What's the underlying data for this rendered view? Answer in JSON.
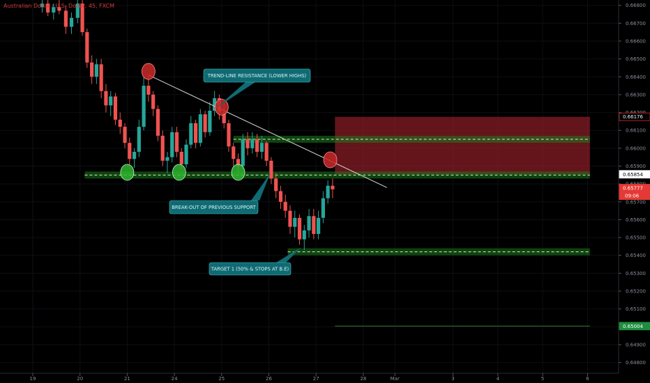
{
  "chart_data": {
    "type": "candlestick",
    "title": "Australian Dollar / U.S. Dollar, 45, FXCM",
    "y_ticks": [
      "0.66800",
      "0.66700",
      "0.66600",
      "0.66500",
      "0.66400",
      "0.66300",
      "0.66200",
      "0.66100",
      "0.66000",
      "0.65900",
      "0.65800",
      "0.65700",
      "0.65600",
      "0.65500",
      "0.65400",
      "0.65300",
      "0.65200",
      "0.65100",
      "0.65000",
      "0.64900",
      "0.64800"
    ],
    "ylim": [
      0.6474,
      0.6683
    ],
    "x_ticks": [
      {
        "label": "19",
        "t": 0
      },
      {
        "label": "20",
        "t": 1
      },
      {
        "label": "21",
        "t": 2
      },
      {
        "label": "24",
        "t": 3
      },
      {
        "label": "25",
        "t": 4
      },
      {
        "label": "26",
        "t": 5
      },
      {
        "label": "27",
        "t": 6
      },
      {
        "label": "28",
        "t": 7
      },
      {
        "label": "Mar",
        "t": 7.67
      },
      {
        "label": "3",
        "t": 8.9
      },
      {
        "label": "4",
        "t": 9.85
      },
      {
        "label": "5",
        "t": 10.8
      },
      {
        "label": "6",
        "t": 11.75
      }
    ],
    "x_axis_unit_note": "x positions are session days; 1 unit = one trading day",
    "price_badges": [
      {
        "label": "0.66176",
        "value": 0.66176,
        "style": "red-outline"
      },
      {
        "label": "0.65854",
        "value": 0.65854,
        "style": "white"
      },
      {
        "label": "0.65777",
        "value": 0.65777,
        "style": "red",
        "sublabel": "09:06"
      },
      {
        "label": "0.65004",
        "value": 0.65004,
        "style": "green"
      }
    ],
    "levels": [
      {
        "name": "previous-support",
        "value": 0.6585,
        "t_start": 1.1,
        "t_end": 11.8
      },
      {
        "name": "resistance-zone",
        "value": 0.6605,
        "t_start": 4.25,
        "t_end": 11.8
      },
      {
        "name": "target-1",
        "value": 0.6542,
        "t_start": 5.4,
        "t_end": 11.8
      }
    ],
    "trendline": {
      "t_start": 2.45,
      "v_start": 0.6641,
      "t_end": 7.5,
      "v_end": 0.6578
    },
    "position_zones": {
      "t_start": 6.4,
      "t_end": 11.8,
      "stop": {
        "from": 0.65854,
        "to": 0.66176
      },
      "target": {
        "from": 0.65004,
        "to": 0.65854
      }
    },
    "markers": [
      {
        "type": "red",
        "t": 2.45,
        "v": 0.6643
      },
      {
        "type": "red",
        "t": 4.0,
        "v": 0.6623
      },
      {
        "type": "red",
        "t": 6.3,
        "v": 0.65935
      },
      {
        "type": "green",
        "t": 2.0,
        "v": 0.65865
      },
      {
        "type": "green",
        "t": 3.1,
        "v": 0.65865
      },
      {
        "type": "green",
        "t": 4.35,
        "v": 0.65865
      }
    ],
    "annotations": [
      {
        "text": "TREND-LINE RESISTANCE (LOWER HIGHS)",
        "anchor_t": 4.0,
        "anchor_v": 0.6623
      },
      {
        "text": "BREAK-OUT OF PREVIOUS SUPPORT",
        "anchor_t": 5.0,
        "anchor_v": 0.6586
      },
      {
        "text": "TARGET 1 (50% & STOPS AT B.E)",
        "anchor_t": 5.6,
        "anchor_v": 0.6542
      }
    ],
    "candles": [
      [
        0.2,
        0.6679,
        0.6684,
        0.6676,
        0.6681
      ],
      [
        0.32,
        0.6681,
        0.6683,
        0.6674,
        0.6676
      ],
      [
        0.44,
        0.6676,
        0.6681,
        0.6672,
        0.6679
      ],
      [
        0.56,
        0.6679,
        0.6683,
        0.6675,
        0.6677
      ],
      [
        0.7,
        0.6677,
        0.668,
        0.6664,
        0.6668
      ],
      [
        0.82,
        0.6668,
        0.6676,
        0.6664,
        0.6673
      ],
      [
        0.95,
        0.6673,
        0.6684,
        0.667,
        0.6681
      ],
      [
        1.05,
        0.6681,
        0.6683,
        0.6663,
        0.6665
      ],
      [
        1.15,
        0.6665,
        0.6667,
        0.6645,
        0.6648
      ],
      [
        1.25,
        0.6648,
        0.6652,
        0.6636,
        0.664
      ],
      [
        1.35,
        0.664,
        0.665,
        0.6636,
        0.6647
      ],
      [
        1.45,
        0.6647,
        0.665,
        0.6628,
        0.6632
      ],
      [
        1.55,
        0.6632,
        0.6636,
        0.662,
        0.6624
      ],
      [
        1.65,
        0.6624,
        0.6632,
        0.6618,
        0.6629
      ],
      [
        1.75,
        0.6629,
        0.6631,
        0.6613,
        0.6616
      ],
      [
        1.85,
        0.6616,
        0.662,
        0.6608,
        0.6612
      ],
      [
        1.95,
        0.6612,
        0.6614,
        0.66,
        0.6603
      ],
      [
        2.05,
        0.6603,
        0.6606,
        0.659,
        0.6594
      ],
      [
        2.15,
        0.6594,
        0.66,
        0.6589,
        0.6598
      ],
      [
        2.25,
        0.6598,
        0.6616,
        0.6595,
        0.6612
      ],
      [
        2.35,
        0.6612,
        0.664,
        0.661,
        0.6635
      ],
      [
        2.45,
        0.6635,
        0.6641,
        0.6626,
        0.663
      ],
      [
        2.55,
        0.663,
        0.6632,
        0.6618,
        0.6622
      ],
      [
        2.65,
        0.6622,
        0.6624,
        0.6604,
        0.6607
      ],
      [
        2.75,
        0.6607,
        0.661,
        0.659,
        0.6593
      ],
      [
        2.85,
        0.6593,
        0.6598,
        0.6586,
        0.6595
      ],
      [
        2.95,
        0.6595,
        0.6612,
        0.6592,
        0.6609
      ],
      [
        3.05,
        0.6609,
        0.6612,
        0.6595,
        0.6598
      ],
      [
        3.15,
        0.6598,
        0.66,
        0.6588,
        0.6591
      ],
      [
        3.25,
        0.6591,
        0.6605,
        0.6589,
        0.6602
      ],
      [
        3.35,
        0.6602,
        0.6618,
        0.66,
        0.6614
      ],
      [
        3.45,
        0.6614,
        0.6616,
        0.66,
        0.6603
      ],
      [
        3.55,
        0.6603,
        0.6622,
        0.6601,
        0.6619
      ],
      [
        3.65,
        0.6619,
        0.6621,
        0.6606,
        0.6609
      ],
      [
        3.75,
        0.6609,
        0.6626,
        0.6607,
        0.6621
      ],
      [
        3.85,
        0.6621,
        0.6632,
        0.6618,
        0.6628
      ],
      [
        3.95,
        0.6628,
        0.663,
        0.6616,
        0.662
      ],
      [
        4.05,
        0.662,
        0.6625,
        0.6611,
        0.6614
      ],
      [
        4.15,
        0.6614,
        0.6616,
        0.6598,
        0.6601
      ],
      [
        4.25,
        0.6601,
        0.6603,
        0.659,
        0.6594
      ],
      [
        4.35,
        0.6594,
        0.6597,
        0.6586,
        0.659
      ],
      [
        4.45,
        0.659,
        0.6608,
        0.6588,
        0.6605
      ],
      [
        4.55,
        0.6605,
        0.6609,
        0.6596,
        0.66
      ],
      [
        4.65,
        0.66,
        0.6609,
        0.6597,
        0.6605
      ],
      [
        4.75,
        0.6605,
        0.6608,
        0.6595,
        0.6598
      ],
      [
        4.85,
        0.6598,
        0.6607,
        0.6594,
        0.6603
      ],
      [
        4.95,
        0.6603,
        0.6604,
        0.659,
        0.6593
      ],
      [
        5.05,
        0.6593,
        0.6595,
        0.658,
        0.6583
      ],
      [
        5.15,
        0.6583,
        0.6586,
        0.6572,
        0.6576
      ],
      [
        5.25,
        0.6576,
        0.6579,
        0.6566,
        0.657
      ],
      [
        5.35,
        0.657,
        0.6574,
        0.6561,
        0.6565
      ],
      [
        5.45,
        0.6565,
        0.6568,
        0.6552,
        0.6556
      ],
      [
        5.55,
        0.6556,
        0.6565,
        0.655,
        0.6561
      ],
      [
        5.65,
        0.6561,
        0.6563,
        0.6546,
        0.6549
      ],
      [
        5.75,
        0.6549,
        0.6557,
        0.6543,
        0.6554
      ],
      [
        5.85,
        0.6554,
        0.6566,
        0.655,
        0.6562
      ],
      [
        5.95,
        0.6562,
        0.6566,
        0.6549,
        0.6552
      ],
      [
        6.05,
        0.6552,
        0.6565,
        0.6549,
        0.6561
      ],
      [
        6.15,
        0.6561,
        0.6576,
        0.6558,
        0.6572
      ],
      [
        6.25,
        0.6572,
        0.6582,
        0.6569,
        0.6579
      ],
      [
        6.35,
        0.6579,
        0.6583,
        0.6572,
        0.6577
      ]
    ]
  }
}
